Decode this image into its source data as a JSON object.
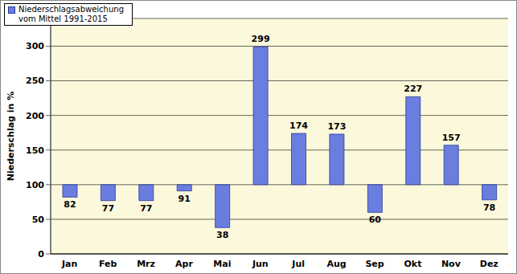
{
  "chart_data": {
    "type": "bar",
    "y_label": "Niederschlag in %",
    "categories": [
      "Jan",
      "Feb",
      "Mrz",
      "Apr",
      "Mai",
      "Jun",
      "Jul",
      "Aug",
      "Sep",
      "Okt",
      "Nov",
      "Dez"
    ],
    "series": [
      {
        "name": "Niederschlagsabweichung vom Mittel 1991-2015",
        "color": "#6a7ee0",
        "values": [
          82,
          77,
          77,
          91,
          38,
          299,
          174,
          173,
          60,
          227,
          157,
          78
        ]
      }
    ],
    "baseline": 100,
    "ylim": [
      0,
      340
    ],
    "yticks": [
      0,
      50,
      100,
      150,
      200,
      250,
      300
    ],
    "grid": true,
    "data_labels": true,
    "legend": "upper left"
  }
}
